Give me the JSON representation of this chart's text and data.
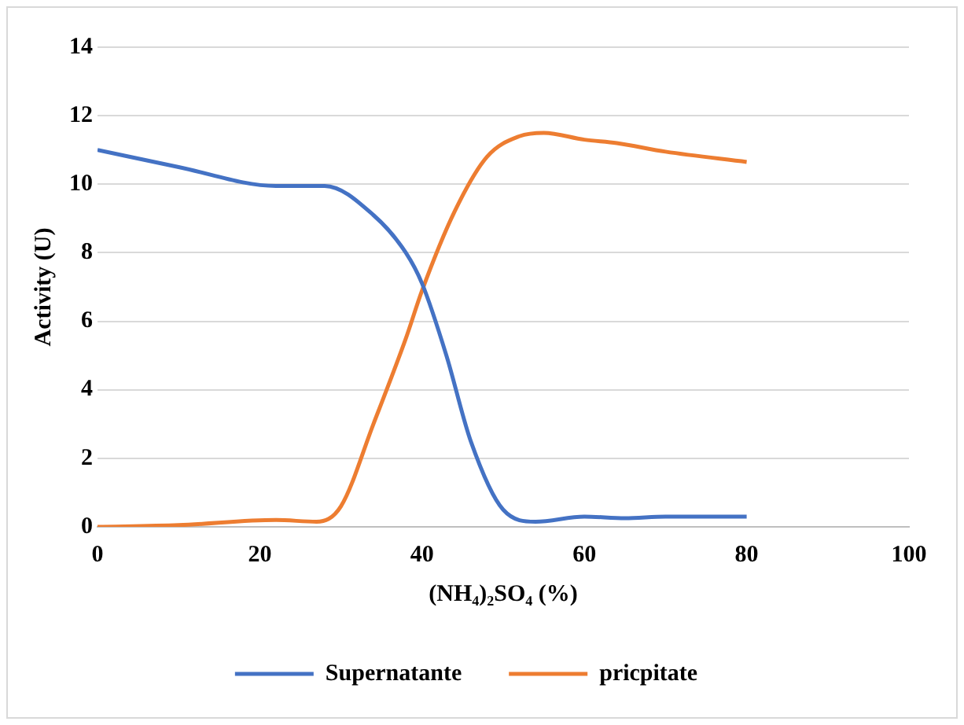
{
  "chart_data": {
    "type": "line",
    "xlabel": "(NH₄)₂SO₄ (%)",
    "ylabel": "Activity (U)",
    "xlim": [
      0,
      100
    ],
    "xticks": [
      0,
      20,
      40,
      60,
      80,
      100
    ],
    "ylim": [
      0,
      14
    ],
    "yticks": [
      0,
      2,
      4,
      6,
      8,
      10,
      12,
      14
    ],
    "grid": "y",
    "legend": "bottom",
    "marker": "none",
    "line_style": "solid",
    "series": [
      {
        "name": "Supernatante",
        "color": "#4472c4",
        "x": [
          0,
          10,
          22,
          28,
          34,
          38,
          40,
          43,
          46,
          50,
          54,
          60,
          65,
          70,
          80
        ],
        "values": [
          11,
          10.5,
          9.95,
          9.95,
          9.1,
          8,
          7.1,
          5,
          2.5,
          0.5,
          0.15,
          0.3,
          0.25,
          0.3,
          0.3
        ]
      },
      {
        "name": "pricpitate",
        "color": "#ed7d31",
        "x": [
          0,
          10,
          22,
          27,
          30,
          34,
          38,
          40,
          44,
          48,
          52,
          55,
          60,
          64,
          70,
          80
        ],
        "values": [
          0,
          0.05,
          0.2,
          0.15,
          0.6,
          3,
          5.5,
          6.9,
          9.2,
          10.8,
          11.4,
          11.5,
          11.3,
          11.2,
          10.95,
          10.65
        ]
      }
    ]
  }
}
